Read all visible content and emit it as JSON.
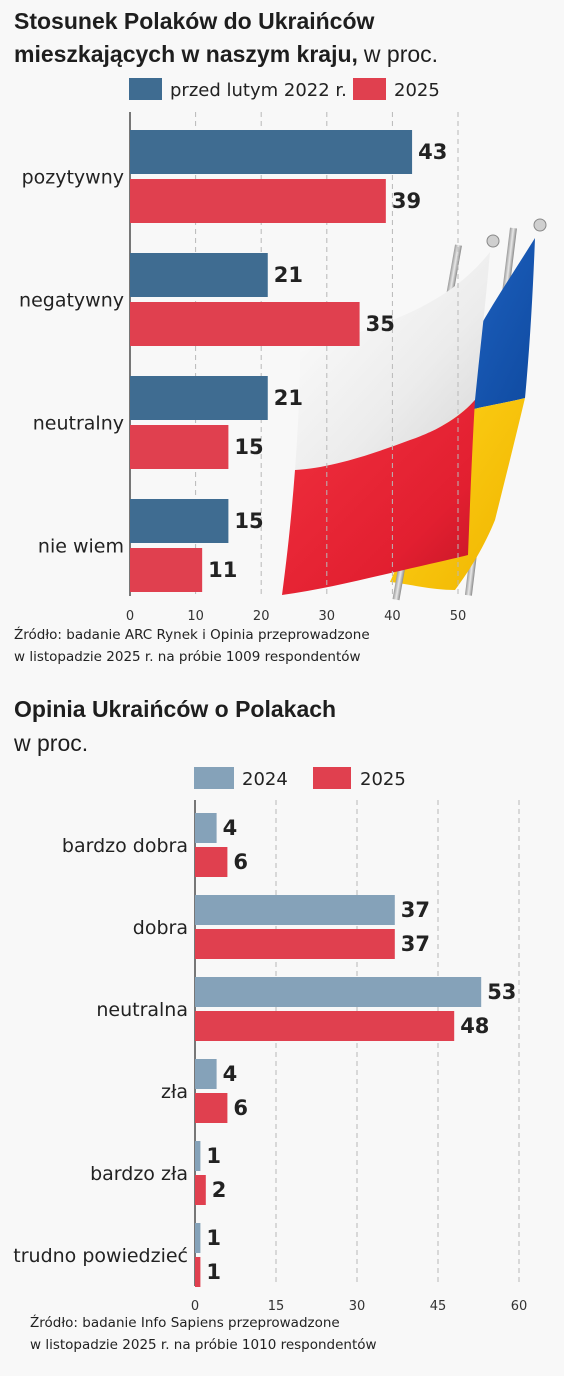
{
  "chart_data": [
    {
      "type": "bar",
      "orientation": "horizontal",
      "title": "Stosunek Polaków do Ukraińców mieszkających w naszym kraju,",
      "title_line1": "Stosunek Polaków do Ukraińców",
      "title_line2": "mieszkających w naszym kraju,",
      "title_suffix": "w proc.",
      "categories": [
        "pozytywny",
        "negatywny",
        "neutralny",
        "nie wiem"
      ],
      "series": [
        {
          "name": "przed lutym 2022 r.",
          "color": "#3f6c91",
          "values": [
            43,
            21,
            21,
            15
          ]
        },
        {
          "name": "2025",
          "color": "#e0404f",
          "values": [
            39,
            35,
            15,
            11
          ]
        }
      ],
      "xlim": [
        0,
        50
      ],
      "xticks": [
        "0",
        "10",
        "20",
        "30",
        "40",
        "50"
      ],
      "grid": true,
      "legend_position": "top",
      "source_line1": "Źródło: badanie ARC Rynek i Opinia przeprowadzone",
      "source_line2": "w listopadzie 2025 r. na próbie 1009 respondentów"
    },
    {
      "type": "bar",
      "orientation": "horizontal",
      "title": "Opinia Ukraińców o Polakach",
      "title_suffix": "w proc.",
      "categories": [
        "bardzo dobra",
        "dobra",
        "neutralna",
        "zła",
        "bardzo zła",
        "trudno powiedzieć"
      ],
      "series": [
        {
          "name": "2024",
          "color": "#85a2b9",
          "values": [
            4,
            37,
            53,
            4,
            1,
            1
          ]
        },
        {
          "name": "2025",
          "color": "#e0404f",
          "values": [
            6,
            37,
            48,
            6,
            2,
            1
          ]
        }
      ],
      "xlim": [
        0,
        60
      ],
      "xticks": [
        "0",
        "15",
        "30",
        "45",
        "60"
      ],
      "grid": true,
      "legend_position": "top",
      "source_line1": "Źródło: badanie Info Sapiens przeprowadzone",
      "source_line2": "w listopadzie 2025 r. na próbie 1010 respondentów"
    }
  ]
}
